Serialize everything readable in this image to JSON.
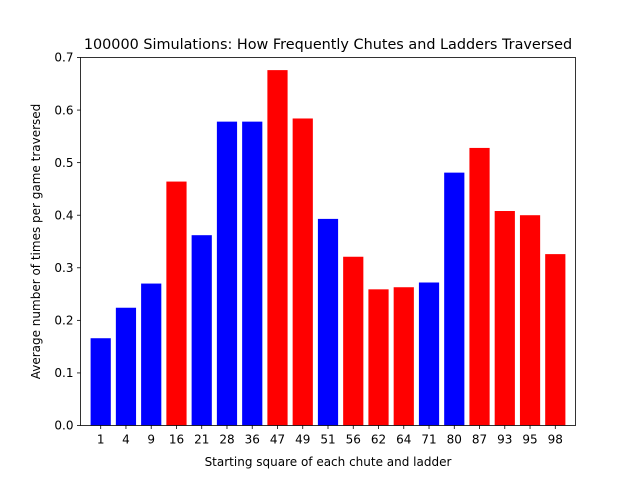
{
  "chart_data": {
    "type": "bar",
    "title": "100000 Simulations: How Frequently Chutes and Ladders Traversed",
    "xlabel": "Starting square of each chute and ladder",
    "ylabel": "Average number of times per game traversed",
    "categories": [
      "1",
      "4",
      "9",
      "16",
      "21",
      "28",
      "36",
      "47",
      "49",
      "51",
      "56",
      "62",
      "64",
      "71",
      "80",
      "87",
      "93",
      "95",
      "98"
    ],
    "values": [
      0.166,
      0.224,
      0.27,
      0.464,
      0.362,
      0.578,
      0.578,
      0.676,
      0.584,
      0.393,
      0.321,
      0.259,
      0.263,
      0.272,
      0.481,
      0.528,
      0.408,
      0.4,
      0.326
    ],
    "bar_kinds": [
      "ladder",
      "ladder",
      "ladder",
      "chute",
      "ladder",
      "ladder",
      "ladder",
      "chute",
      "chute",
      "ladder",
      "chute",
      "chute",
      "chute",
      "ladder",
      "ladder",
      "chute",
      "chute",
      "chute",
      "chute"
    ],
    "colors": {
      "ladder": "#0000ff",
      "chute": "#ff0000"
    },
    "ylim": [
      0,
      0.7
    ],
    "yticks": [
      0.0,
      0.1,
      0.2,
      0.3,
      0.4,
      0.5,
      0.6,
      0.7
    ],
    "ytick_labels": [
      "0.0",
      "0.1",
      "0.2",
      "0.3",
      "0.4",
      "0.5",
      "0.6",
      "0.7"
    ],
    "grid": false,
    "legend": false
  }
}
